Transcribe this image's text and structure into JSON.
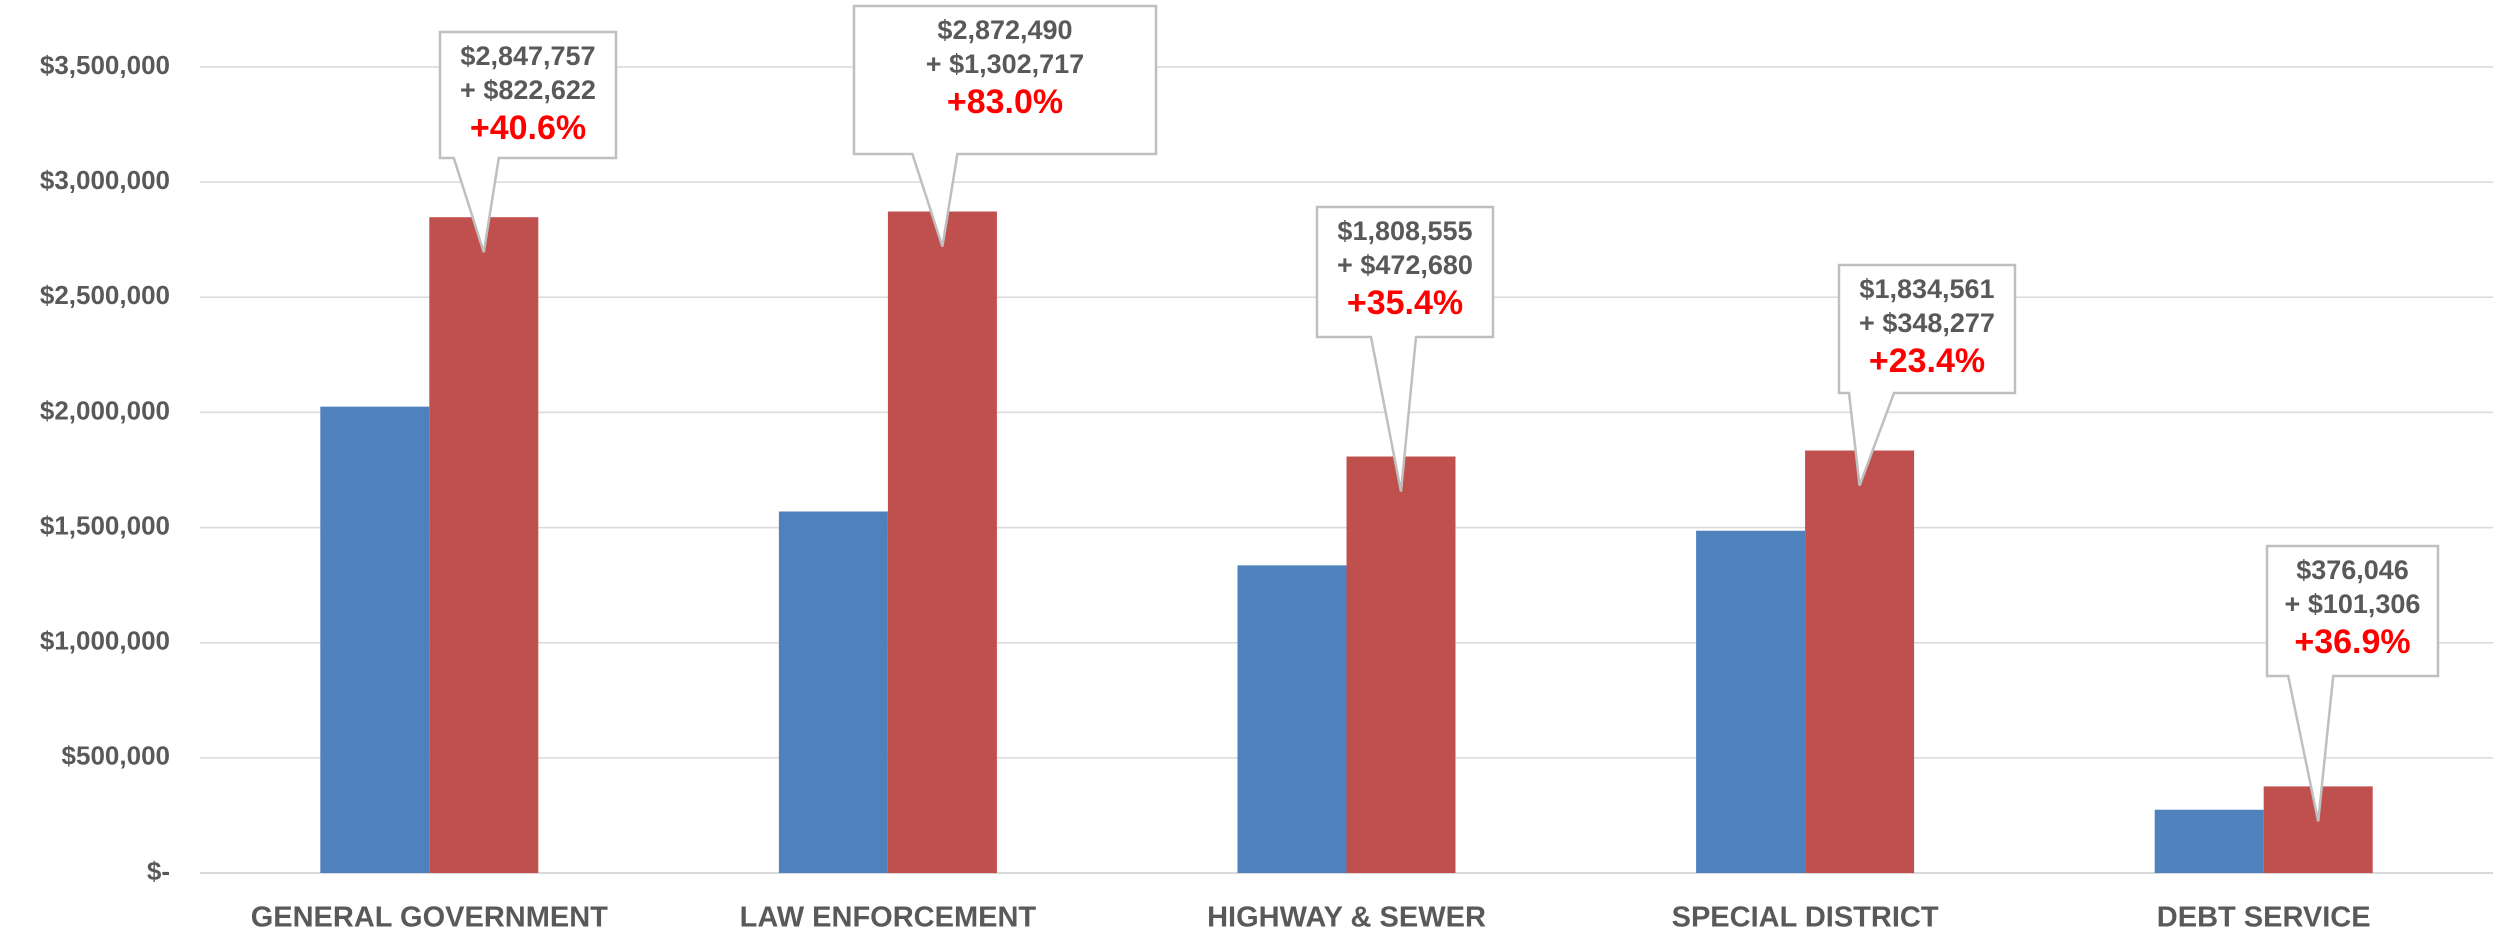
{
  "chart_data": {
    "type": "bar",
    "categories": [
      "GENERAL GOVERNMENT",
      "LAW ENFORCEMENT",
      "HIGHWAY & SEWER",
      "SPECIAL DISTRICT",
      "DEBT SERVICE"
    ],
    "series": [
      {
        "color": "#4f81bd",
        "values": [
          2025135,
          1569773,
          1335875,
          1486284,
          274740
        ]
      },
      {
        "color": "#c0504d",
        "values": [
          2847757,
          2872490,
          1808555,
          1834561,
          376046
        ],
        "value_labels": [
          "$2,847,757",
          "$2,872,490",
          "$1,808,555",
          "$1,834,561",
          "$376,046"
        ]
      }
    ],
    "annotations": [
      {
        "increase": "+ $822,622",
        "change": "+40.6%"
      },
      {
        "increase": "+ $1,302,717",
        "change": "+83.0%"
      },
      {
        "increase": "+ $472,680",
        "change": "+35.4%"
      },
      {
        "increase": "+ $348,277",
        "change": "+23.4%"
      },
      {
        "increase": "+ $101,306",
        "change": "+36.9%"
      }
    ],
    "annotation_color": "#ff0000",
    "ylim": [
      0,
      3500000
    ],
    "yticks": [
      {
        "value": 0,
        "label": "$-"
      },
      {
        "value": 500000,
        "label": "$500,000"
      },
      {
        "value": 1000000,
        "label": "$1,000,000"
      },
      {
        "value": 1500000,
        "label": "$1,500,000"
      },
      {
        "value": 2000000,
        "label": "$2,000,000"
      },
      {
        "value": 2500000,
        "label": "$2,500,000"
      },
      {
        "value": 3000000,
        "label": "$3,000,000"
      },
      {
        "value": 3500000,
        "label": "$3,500,000"
      }
    ],
    "grid": true
  }
}
